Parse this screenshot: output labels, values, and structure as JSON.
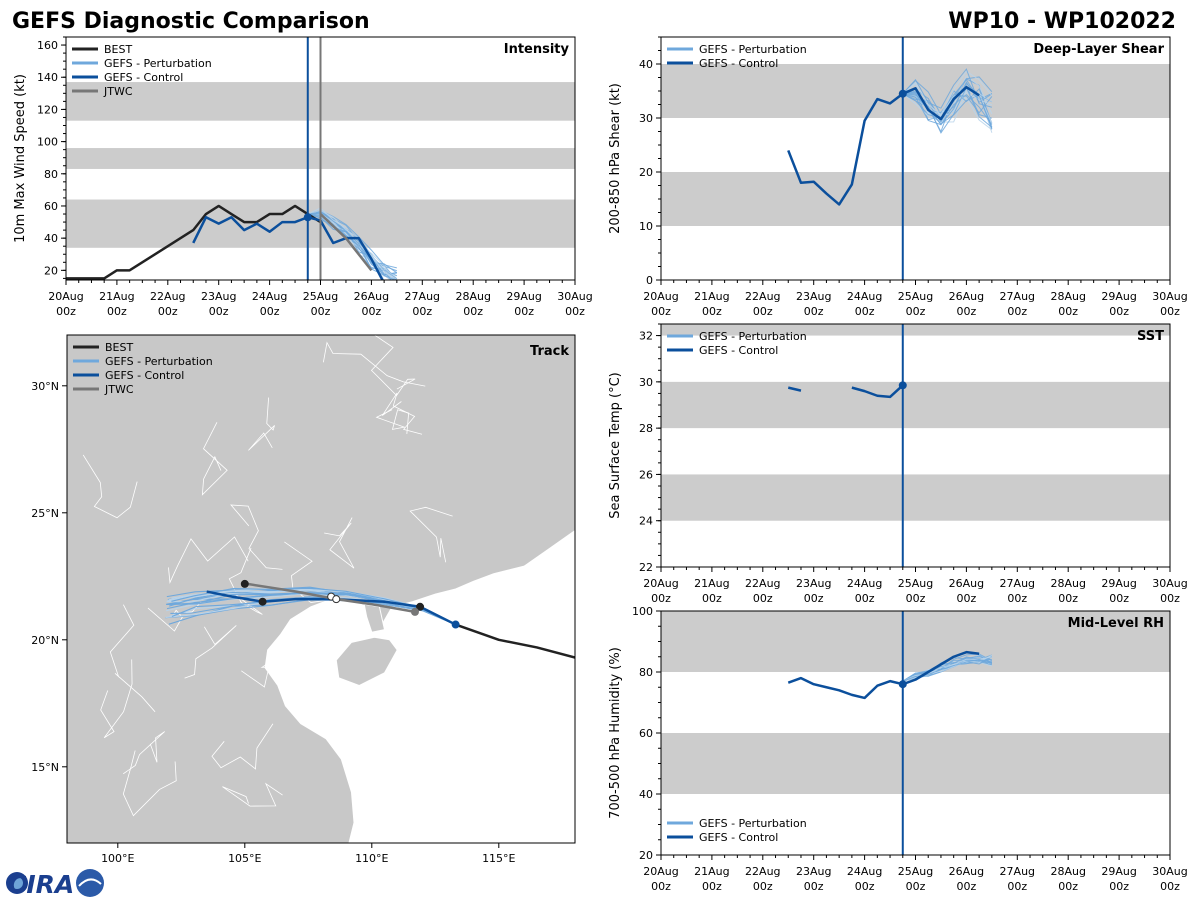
{
  "header": {
    "title": "GEFS Diagnostic Comparison",
    "storm": "WP10 - WP102022",
    "logo_text": "CIRA"
  },
  "colors": {
    "best": "#222222",
    "perturbation": "#6fa8dc",
    "perturbation_faint": "#b8d3ea",
    "control": "#0b4f9c",
    "jtwc": "#777777",
    "band": "#cccccc",
    "land": "#c8c8c8",
    "sea": "#ffffff"
  },
  "time_axis": {
    "days": [
      "20Aug",
      "21Aug",
      "22Aug",
      "23Aug",
      "24Aug",
      "25Aug",
      "26Aug",
      "27Aug",
      "28Aug",
      "29Aug",
      "30Aug"
    ],
    "hour_label": "00z"
  },
  "chart_data": [
    {
      "id": "intensity",
      "type": "line",
      "title": "Intensity",
      "ylabel": "10m Max Wind Speed (kt)",
      "xlim": [
        0,
        10
      ],
      "ylim": [
        14,
        165
      ],
      "yticks": [
        20,
        40,
        60,
        80,
        100,
        120,
        140,
        160
      ],
      "bands": [
        [
          34,
          64
        ],
        [
          83,
          96
        ],
        [
          113,
          137
        ]
      ],
      "vlines": [
        {
          "x": 4.75,
          "series": "control"
        },
        {
          "x": 5.0,
          "series": "jtwc"
        }
      ],
      "legend": [
        "BEST",
        "GEFS - Perturbation",
        "GEFS - Control",
        "JTWC"
      ],
      "series": [
        {
          "name": "BEST",
          "color": "best",
          "width": 2.5,
          "x": [
            0,
            0.75,
            1,
            1.25,
            2.5,
            2.75,
            3,
            3.25,
            3.5,
            3.75,
            4,
            4.25,
            4.5,
            4.75,
            5
          ],
          "y": [
            15,
            15,
            20,
            20,
            45,
            55,
            60,
            55,
            50,
            50,
            55,
            55,
            60,
            55,
            50
          ]
        },
        {
          "name": "GEFS - Control",
          "color": "control",
          "width": 2.5,
          "x": [
            2.5,
            2.75,
            3,
            3.25,
            3.5,
            3.75,
            4,
            4.25,
            4.5,
            4.75,
            5,
            5.25,
            5.5,
            5.75,
            6,
            6.25
          ],
          "y": [
            37,
            53,
            49,
            53,
            45,
            49,
            44,
            50,
            50,
            53,
            51,
            37,
            40,
            40,
            27,
            12
          ]
        },
        {
          "name": "JTWC",
          "color": "jtwc",
          "width": 2.5,
          "x": [
            5,
            5.5,
            6
          ],
          "y": [
            55,
            40,
            20
          ]
        }
      ],
      "ensemble": {
        "color": "perturbation",
        "members": 20,
        "x_start": 4.75,
        "x_end": 6.5,
        "base_x": [
          4.75,
          5,
          5.25,
          5.5,
          5.75,
          6,
          6.25,
          6.5
        ],
        "base_y": [
          55,
          55,
          50,
          44,
          36,
          28,
          20,
          14
        ],
        "spread": 10
      },
      "markers": [
        {
          "x": 4.75,
          "y": 53,
          "color": "control"
        }
      ]
    },
    {
      "id": "shear",
      "type": "line",
      "title": "Deep-Layer Shear",
      "ylabel": "200-850 hPa Shear (kt)",
      "xlim": [
        0,
        10
      ],
      "ylim": [
        0,
        45
      ],
      "yticks": [
        0,
        10,
        20,
        30,
        40
      ],
      "bands": [
        [
          10,
          20
        ],
        [
          30,
          40
        ]
      ],
      "vlines": [
        {
          "x": 4.75,
          "series": "control"
        }
      ],
      "legend": [
        "GEFS - Perturbation",
        "GEFS - Control"
      ],
      "series": [
        {
          "name": "GEFS - Control",
          "color": "control",
          "width": 2.5,
          "x": [
            2.5,
            2.75,
            3,
            3.25,
            3.5,
            3.75,
            4,
            4.25,
            4.5,
            4.75,
            5,
            5.25,
            5.5,
            5.75,
            6,
            6.25
          ],
          "y": [
            24,
            18,
            18.2,
            16,
            14,
            17.7,
            29.5,
            33.5,
            32.7,
            34.5,
            35.5,
            31.5,
            29.8,
            33.5,
            35.7,
            34.2
          ]
        }
      ],
      "ensemble": {
        "color": "perturbation",
        "members": 20,
        "base_x": [
          4.75,
          5,
          5.25,
          5.5,
          5.75,
          6,
          6.25,
          6.5
        ],
        "base_y": [
          34.5,
          35,
          32,
          29.5,
          33,
          36,
          34,
          31
        ],
        "spread": 6
      },
      "markers": [
        {
          "x": 4.75,
          "y": 34.5,
          "color": "control"
        }
      ]
    },
    {
      "id": "sst",
      "type": "line",
      "title": "SST",
      "ylabel": "Sea Surface Temp (°C)",
      "xlim": [
        0,
        10
      ],
      "ylim": [
        22,
        32.5
      ],
      "yticks": [
        22,
        24,
        26,
        28,
        30,
        32
      ],
      "bands": [
        [
          24,
          26
        ],
        [
          28,
          30
        ],
        [
          32,
          32.5
        ]
      ],
      "vlines": [
        {
          "x": 4.75,
          "series": "control"
        }
      ],
      "legend": [
        "GEFS - Perturbation",
        "GEFS - Control"
      ],
      "series": [
        {
          "name": "GEFS - Control",
          "color": "control",
          "width": 2.5,
          "x": [
            2.5,
            2.75
          ],
          "y": [
            29.75,
            29.62
          ]
        },
        {
          "name": "GEFS - Control",
          "color": "control",
          "width": 2.5,
          "x": [
            3.75,
            4,
            4.25,
            4.5,
            4.75
          ],
          "y": [
            29.75,
            29.6,
            29.4,
            29.35,
            29.85
          ]
        }
      ],
      "markers": [
        {
          "x": 4.75,
          "y": 29.85,
          "color": "control"
        }
      ]
    },
    {
      "id": "rh",
      "type": "line",
      "title": "Mid-Level RH",
      "ylabel": "700-500 hPa Humidity (%)",
      "xlim": [
        0,
        10
      ],
      "ylim": [
        20,
        100
      ],
      "yticks": [
        20,
        40,
        60,
        80,
        100
      ],
      "bands": [
        [
          40,
          60
        ],
        [
          80,
          100
        ]
      ],
      "vlines": [
        {
          "x": 4.75,
          "series": "control"
        }
      ],
      "legend": [
        "GEFS - Perturbation",
        "GEFS - Control"
      ],
      "legend_pos": "bottom-left",
      "series": [
        {
          "name": "GEFS - Control",
          "color": "control",
          "width": 2.5,
          "x": [
            2.5,
            2.75,
            3,
            3.25,
            3.5,
            3.75,
            4,
            4.25,
            4.5,
            4.75,
            5,
            5.25,
            5.5,
            5.75,
            6,
            6.25
          ],
          "y": [
            76.5,
            78,
            76,
            75,
            74,
            72.5,
            71.5,
            75.5,
            77,
            76,
            77.5,
            80,
            82.5,
            85,
            86.5,
            86
          ]
        }
      ],
      "ensemble": {
        "color": "perturbation",
        "members": 20,
        "base_x": [
          4.75,
          5,
          5.25,
          5.5,
          5.75,
          6,
          6.25,
          6.5
        ],
        "base_y": [
          77,
          79,
          80,
          81.5,
          83,
          84,
          84.5,
          84
        ],
        "spread": 3
      },
      "markers": [
        {
          "x": 4.75,
          "y": 76,
          "color": "control"
        }
      ]
    },
    {
      "id": "track",
      "type": "line",
      "title": "Track",
      "xlim": [
        98,
        118
      ],
      "ylim": [
        12,
        32
      ],
      "xticks": [
        100,
        105,
        110,
        115
      ],
      "xtick_labels": [
        "100°E",
        "105°E",
        "110°E",
        "115°E"
      ],
      "yticks": [
        15,
        20,
        25,
        30
      ],
      "ytick_labels": [
        "15°N",
        "20°N",
        "25°N",
        "30°N"
      ],
      "legend": [
        "BEST",
        "GEFS - Perturbation",
        "GEFS - Control",
        "JTWC"
      ],
      "series": [
        {
          "name": "BEST",
          "color": "best",
          "width": 2.5,
          "lon": [
            118,
            116.5,
            115,
            113.3
          ],
          "lat": [
            19.3,
            19.7,
            20.0,
            20.6
          ]
        },
        {
          "name": "GEFS - Control",
          "color": "control",
          "width": 2.5,
          "lon": [
            113.3,
            111.9,
            110.5,
            108.5,
            107,
            105.7,
            104.5,
            103.5
          ],
          "lat": [
            20.6,
            21.3,
            21.5,
            21.6,
            21.6,
            21.5,
            21.7,
            21.9
          ]
        },
        {
          "name": "JTWC",
          "color": "jtwc",
          "width": 2.5,
          "lon": [
            111.7,
            110,
            108.6,
            107,
            105.1
          ],
          "lat": [
            21.1,
            21.4,
            21.6,
            21.9,
            22.2
          ]
        }
      ],
      "points": [
        {
          "lon": 113.3,
          "lat": 20.6,
          "color": "control",
          "r": 4
        },
        {
          "lon": 111.9,
          "lat": 21.3,
          "color": "best",
          "r": 4
        },
        {
          "lon": 105.7,
          "lat": 21.5,
          "color": "best",
          "r": 4
        },
        {
          "lon": 105.0,
          "lat": 22.2,
          "color": "best",
          "r": 4
        },
        {
          "lon": 111.7,
          "lat": 21.1,
          "color": "jtwc",
          "r": 4
        },
        {
          "lon": 108.4,
          "lat": 21.7,
          "color": "hollow",
          "r": 3.5
        },
        {
          "lon": 108.6,
          "lat": 21.6,
          "color": "hollow",
          "r": 3.5
        }
      ],
      "ensemble": {
        "color": "perturbation",
        "members": 20,
        "base_lon": [
          113.3,
          112,
          110.5,
          109,
          107.5,
          106,
          104.5,
          103,
          102
        ],
        "base_lat": [
          20.6,
          21.2,
          21.5,
          21.7,
          21.8,
          21.7,
          21.6,
          21.4,
          21.2
        ],
        "spread": 0.8
      }
    }
  ]
}
